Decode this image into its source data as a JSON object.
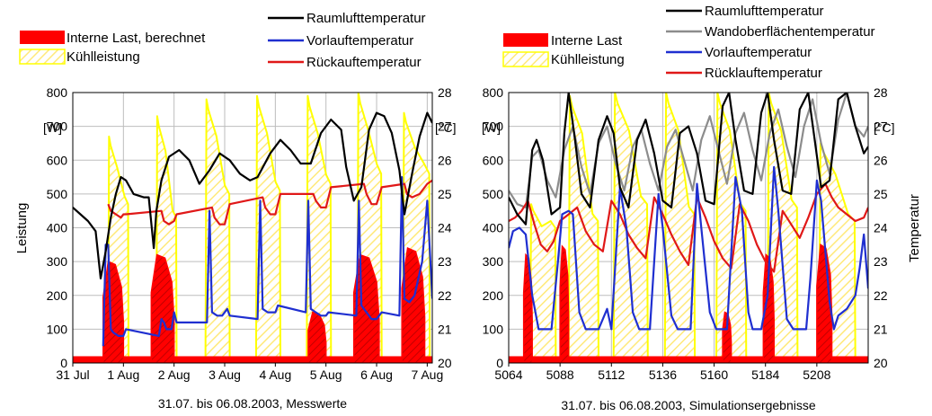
{
  "colors": {
    "raumluft": "#000000",
    "wandoberflaeche": "#8c8c8c",
    "vorlauf": "#1f2fd0",
    "ruecklauf": "#e01818",
    "interne_last": "#ff0000",
    "kuehlleistung": "#ffff00",
    "kuehl_hatch": "#ffe97a"
  },
  "chart_data": [
    {
      "type": "line",
      "caption": "31.07. bis 06.08.2003, Messwerte",
      "ylabel": "Leistung",
      "y_unit": "[W]",
      "y2_unit": "[°C]",
      "ylim": [
        0,
        800
      ],
      "y_ticks": [
        "0",
        "100",
        "200",
        "300",
        "400",
        "500",
        "600",
        "700",
        "800"
      ],
      "y2lim": [
        20,
        28
      ],
      "y2_ticks": [
        "20",
        "21",
        "22",
        "23",
        "24",
        "25",
        "26",
        "27",
        "28"
      ],
      "xlim": [
        0,
        7.1
      ],
      "x_ticks": [
        {
          "x": 0,
          "label": "31 Jul"
        },
        {
          "x": 1,
          "label": "1 Aug"
        },
        {
          "x": 2,
          "label": "2 Aug"
        },
        {
          "x": 3,
          "label": "3 Aug"
        },
        {
          "x": 4,
          "label": "4 Aug"
        },
        {
          "x": 5,
          "label": "5 Aug"
        },
        {
          "x": 6,
          "label": "6 Aug"
        },
        {
          "x": 7,
          "label": "7 Aug"
        }
      ],
      "legend_left": [
        {
          "name": "Interne Last, berechnet",
          "style": "solid-red"
        },
        {
          "name": "Kühlleistung",
          "style": "hatch-yellow"
        }
      ],
      "legend_right": [
        {
          "name": "Raumlufttemperatur",
          "color": "#000000"
        },
        {
          "name": "Vorlauftemperatur",
          "color": "#1f2fd0"
        },
        {
          "name": "Rückauftemperatur",
          "color": "#e01818"
        }
      ],
      "series": [
        {
          "key": "raumluft",
          "axis": "temp",
          "x": [
            0,
            0.15,
            0.3,
            0.45,
            0.55,
            0.65,
            0.75,
            0.85,
            0.95,
            1.05,
            1.2,
            1.4,
            1.5,
            1.6,
            1.65,
            1.75,
            1.9,
            2.1,
            2.3,
            2.5,
            2.7,
            2.9,
            3.1,
            3.3,
            3.5,
            3.65,
            3.9,
            4.1,
            4.3,
            4.5,
            4.7,
            4.9,
            5.1,
            5.3,
            5.4,
            5.55,
            5.7,
            5.85,
            6.0,
            6.15,
            6.3,
            6.45,
            6.55,
            6.7,
            6.85,
            7.0,
            7.1
          ],
          "values": [
            24.6,
            24.4,
            24.2,
            23.9,
            22.5,
            23.3,
            24.3,
            25.0,
            25.5,
            25.4,
            25.0,
            24.9,
            24.9,
            23.4,
            24.5,
            25.4,
            26.1,
            26.3,
            26.0,
            25.3,
            25.7,
            26.2,
            26.0,
            25.6,
            25.4,
            25.5,
            26.2,
            26.6,
            26.3,
            25.9,
            25.9,
            26.8,
            27.2,
            26.9,
            25.8,
            24.8,
            25.2,
            26.9,
            27.4,
            27.3,
            26.8,
            25.7,
            24.4,
            25.6,
            26.7,
            27.4,
            27.1
          ]
        },
        {
          "key": "vorlauf",
          "axis": "temp",
          "x": [
            0.6,
            0.65,
            0.7,
            0.75,
            0.8,
            0.9,
            1.0,
            1.05,
            1.7,
            1.75,
            1.8,
            1.85,
            1.95,
            2.0,
            2.05,
            2.65,
            2.7,
            2.75,
            2.85,
            2.95,
            3.05,
            3.1,
            3.65,
            3.7,
            3.75,
            3.85,
            4.0,
            4.05,
            4.6,
            4.65,
            4.7,
            4.8,
            4.9,
            5.0,
            5.05,
            5.6,
            5.65,
            5.7,
            5.8,
            5.9,
            6.0,
            6.1,
            6.45,
            6.5,
            6.55,
            6.65,
            6.75,
            6.9,
            7.0,
            7.1
          ],
          "values": [
            20.5,
            23.5,
            23.5,
            21.0,
            20.9,
            20.8,
            20.8,
            21.0,
            20.8,
            21.3,
            21.2,
            21.0,
            21.0,
            21.5,
            21.2,
            21.2,
            24.5,
            21.5,
            21.4,
            21.4,
            21.6,
            21.4,
            21.3,
            24.8,
            21.6,
            21.5,
            21.5,
            21.7,
            21.5,
            24.8,
            21.6,
            21.5,
            21.4,
            21.4,
            21.5,
            21.4,
            24.8,
            21.7,
            21.5,
            21.3,
            21.3,
            21.5,
            21.4,
            25.5,
            21.9,
            21.8,
            22.0,
            23.0,
            24.8,
            21.9
          ]
        },
        {
          "key": "ruecklauf",
          "axis": "temp",
          "x": [
            0.7,
            0.75,
            0.85,
            0.95,
            1.0,
            1.05,
            1.75,
            1.8,
            1.9,
            2.0,
            2.05,
            2.75,
            2.8,
            2.9,
            3.0,
            3.1,
            3.75,
            3.8,
            3.9,
            4.0,
            4.1,
            4.75,
            4.8,
            4.9,
            5.0,
            5.1,
            5.75,
            5.8,
            5.9,
            6.0,
            6.1,
            6.55,
            6.6,
            6.7,
            6.85,
            7.0,
            7.1
          ],
          "values": [
            24.7,
            24.5,
            24.4,
            24.3,
            24.4,
            24.4,
            24.5,
            24.2,
            24.1,
            24.2,
            24.4,
            24.6,
            24.3,
            24.1,
            24.1,
            24.7,
            24.9,
            24.6,
            24.4,
            24.4,
            25.0,
            25.0,
            24.8,
            24.6,
            24.6,
            25.2,
            25.3,
            25.0,
            24.7,
            24.7,
            25.2,
            25.3,
            25.0,
            24.9,
            25.0,
            25.3,
            25.4
          ]
        }
      ],
      "interne_last": {
        "baseline": 20,
        "blocks": [
          {
            "x0": 0.6,
            "x1": 1.0,
            "peak": 300
          },
          {
            "x0": 1.55,
            "x1": 2.0,
            "peak": 320
          },
          {
            "x0": 4.65,
            "x1": 5.0,
            "peak": 150
          },
          {
            "x0": 5.55,
            "x1": 6.05,
            "peak": 320
          },
          {
            "x0": 6.5,
            "x1": 6.95,
            "peak": 340
          }
        ]
      },
      "kuehlleistung": {
        "cycles": [
          {
            "x0": 0.7,
            "x1": 1.1,
            "top": 670,
            "end": 470
          },
          {
            "x0": 1.65,
            "x1": 2.05,
            "top": 730,
            "end": 430
          },
          {
            "x0": 2.62,
            "x1": 3.1,
            "top": 780,
            "end": 500
          },
          {
            "x0": 3.62,
            "x1": 4.1,
            "top": 790,
            "end": 510
          },
          {
            "x0": 4.62,
            "x1": 5.1,
            "top": 790,
            "end": 530
          },
          {
            "x0": 5.62,
            "x1": 6.1,
            "top": 800,
            "end": 560
          },
          {
            "x0": 6.52,
            "x1": 7.05,
            "top": 740,
            "end": 560
          }
        ]
      }
    },
    {
      "type": "line",
      "caption": "31.07. bis 06.08.2003, Simulationsergebnisse",
      "ylabel": "Temperatur",
      "y_unit": "[W]",
      "y2_unit": "[°C]",
      "ylim": [
        0,
        800
      ],
      "y_ticks": [
        "0",
        "100",
        "200",
        "300",
        "400",
        "500",
        "600",
        "700",
        "800"
      ],
      "y2lim": [
        20,
        28
      ],
      "y2_ticks": [
        "20",
        "21",
        "22",
        "23",
        "24",
        "25",
        "26",
        "27",
        "28"
      ],
      "xlim": [
        5064,
        5232
      ],
      "x_ticks": [
        {
          "x": 5064,
          "label": "5064"
        },
        {
          "x": 5088,
          "label": "5088"
        },
        {
          "x": 5112,
          "label": "5112"
        },
        {
          "x": 5136,
          "label": "5136"
        },
        {
          "x": 5160,
          "label": "5160"
        },
        {
          "x": 5184,
          "label": "5184"
        },
        {
          "x": 5208,
          "label": "5208"
        }
      ],
      "legend_left": [
        {
          "name": "Interne Last",
          "style": "solid-red"
        },
        {
          "name": "Kühlleistung",
          "style": "hatch-yellow"
        }
      ],
      "legend_right": [
        {
          "name": "Raumlufttemperatur",
          "color": "#000000"
        },
        {
          "name": "Wandoberflächentemperatur",
          "color": "#8c8c8c"
        },
        {
          "name": "Vorlauftemperatur",
          "color": "#1f2fd0"
        },
        {
          "name": "Rücklauftemperatur",
          "color": "#e01818"
        }
      ],
      "series": [
        {
          "key": "raumluft",
          "axis": "temp",
          "x": [
            5064,
            5068,
            5072,
            5075,
            5077,
            5080,
            5084,
            5088,
            5090,
            5092,
            5095,
            5098,
            5102,
            5106,
            5110,
            5113,
            5116,
            5120,
            5124,
            5128,
            5132,
            5136,
            5140,
            5144,
            5148,
            5152,
            5156,
            5160,
            5164,
            5167,
            5170,
            5174,
            5178,
            5182,
            5185,
            5188,
            5192,
            5196,
            5200,
            5204,
            5207,
            5210,
            5214,
            5218,
            5222,
            5226,
            5230,
            5232
          ],
          "values": [
            24.9,
            24.4,
            24.1,
            26.3,
            26.6,
            26.0,
            24.4,
            24.6,
            26.8,
            28.0,
            26.6,
            25.0,
            24.6,
            26.6,
            27.3,
            26.8,
            25.2,
            24.6,
            26.6,
            27.2,
            26.2,
            24.8,
            24.6,
            26.8,
            27.0,
            26.2,
            24.8,
            24.7,
            27.6,
            28.0,
            26.6,
            25.1,
            25.0,
            27.4,
            28.0,
            26.6,
            25.1,
            25.0,
            27.5,
            28.0,
            26.6,
            25.2,
            25.4,
            27.8,
            28.0,
            27.0,
            26.2,
            26.4
          ]
        },
        {
          "key": "wandoberflaeche",
          "axis": "temp",
          "x": [
            5064,
            5068,
            5072,
            5075,
            5078,
            5082,
            5086,
            5090,
            5094,
            5098,
            5102,
            5106,
            5110,
            5114,
            5118,
            5122,
            5126,
            5130,
            5134,
            5138,
            5142,
            5146,
            5150,
            5154,
            5158,
            5162,
            5166,
            5170,
            5174,
            5178,
            5182,
            5186,
            5190,
            5194,
            5198,
            5202,
            5206,
            5210,
            5214,
            5218,
            5222,
            5226,
            5230,
            5232
          ],
          "values": [
            25.1,
            24.7,
            24.6,
            26.1,
            26.3,
            25.4,
            24.9,
            26.3,
            27.0,
            25.8,
            25.0,
            26.5,
            27.0,
            25.9,
            25.1,
            26.4,
            26.9,
            25.9,
            25.1,
            26.4,
            26.9,
            26.0,
            25.1,
            26.6,
            27.3,
            26.3,
            25.3,
            26.8,
            27.4,
            26.3,
            25.4,
            26.8,
            27.5,
            26.4,
            25.5,
            27.0,
            27.8,
            26.5,
            25.6,
            27.2,
            28.0,
            27.0,
            26.7,
            27.0
          ]
        },
        {
          "key": "vorlauf",
          "axis": "temp",
          "x": [
            5064,
            5066,
            5069,
            5072,
            5075,
            5078,
            5080,
            5084,
            5087,
            5089,
            5092,
            5094,
            5097,
            5100,
            5103,
            5106,
            5108,
            5110,
            5112,
            5116,
            5119,
            5122,
            5125,
            5128,
            5130,
            5134,
            5136,
            5140,
            5143,
            5146,
            5149,
            5152,
            5154,
            5158,
            5161,
            5164,
            5166,
            5170,
            5173,
            5176,
            5178,
            5182,
            5185,
            5188,
            5190,
            5194,
            5197,
            5200,
            5203,
            5205,
            5208,
            5210,
            5214,
            5216,
            5218,
            5222,
            5226,
            5228,
            5230,
            5232
          ],
          "values": [
            23.4,
            23.9,
            24.0,
            23.8,
            22.0,
            21.0,
            21.0,
            21.0,
            23.0,
            24.4,
            24.5,
            24.4,
            21.5,
            21.0,
            21.0,
            21.0,
            21.3,
            21.6,
            21.0,
            25.2,
            24.0,
            21.5,
            21.0,
            21.0,
            21.0,
            25.0,
            24.0,
            21.4,
            21.0,
            21.0,
            21.0,
            25.3,
            24.0,
            21.5,
            21.0,
            21.0,
            21.0,
            25.5,
            24.5,
            21.5,
            21.0,
            21.0,
            22.0,
            25.8,
            24.5,
            21.3,
            21.0,
            21.0,
            21.0,
            22.5,
            25.4,
            24.8,
            21.8,
            21.0,
            21.4,
            21.6,
            22.0,
            22.8,
            23.8,
            22.2
          ]
        },
        {
          "key": "ruecklauf",
          "axis": "temp",
          "x": [
            5064,
            5067,
            5070,
            5073,
            5076,
            5079,
            5082,
            5085,
            5088,
            5092,
            5096,
            5100,
            5104,
            5108,
            5112,
            5116,
            5120,
            5124,
            5128,
            5132,
            5136,
            5140,
            5144,
            5148,
            5152,
            5156,
            5160,
            5164,
            5168,
            5172,
            5176,
            5180,
            5184,
            5188,
            5192,
            5196,
            5200,
            5204,
            5208,
            5212,
            5215,
            5218,
            5222,
            5226,
            5230,
            5232
          ],
          "values": [
            24.2,
            24.3,
            24.5,
            24.8,
            24.1,
            23.5,
            23.3,
            23.6,
            24.2,
            24.4,
            24.6,
            23.9,
            23.5,
            23.3,
            24.8,
            24.4,
            23.8,
            23.4,
            23.1,
            24.9,
            24.4,
            23.8,
            23.3,
            22.9,
            24.9,
            24.3,
            23.6,
            23.1,
            22.8,
            24.7,
            24.2,
            23.5,
            23.0,
            22.7,
            24.5,
            24.1,
            23.7,
            24.3,
            25.0,
            25.3,
            24.9,
            24.6,
            24.4,
            24.2,
            24.3,
            24.6
          ]
        }
      ],
      "interne_last": {
        "baseline": 20,
        "blocks": [
          {
            "x0": 5071,
            "x1": 5075,
            "peak": 320
          },
          {
            "x0": 5088,
            "x1": 5092,
            "peak": 345
          },
          {
            "x0": 5164,
            "x1": 5168,
            "peak": 150
          },
          {
            "x0": 5183,
            "x1": 5188,
            "peak": 320
          },
          {
            "x0": 5208,
            "x1": 5215,
            "peak": 350
          }
        ]
      },
      "kuehlleistung": {
        "cycles": [
          {
            "x0": 5074,
            "x1": 5086,
            "top": 470,
            "end": 400
          },
          {
            "x0": 5092,
            "x1": 5106,
            "top": 790,
            "end": 420
          },
          {
            "x0": 5113,
            "x1": 5129,
            "top": 800,
            "end": 470
          },
          {
            "x0": 5137,
            "x1": 5151,
            "top": 800,
            "end": 440
          },
          {
            "x0": 5161,
            "x1": 5175,
            "top": 800,
            "end": 450
          },
          {
            "x0": 5185,
            "x1": 5199,
            "top": 800,
            "end": 460
          },
          {
            "x0": 5209,
            "x1": 5226,
            "top": 650,
            "end": 420
          }
        ]
      }
    }
  ]
}
